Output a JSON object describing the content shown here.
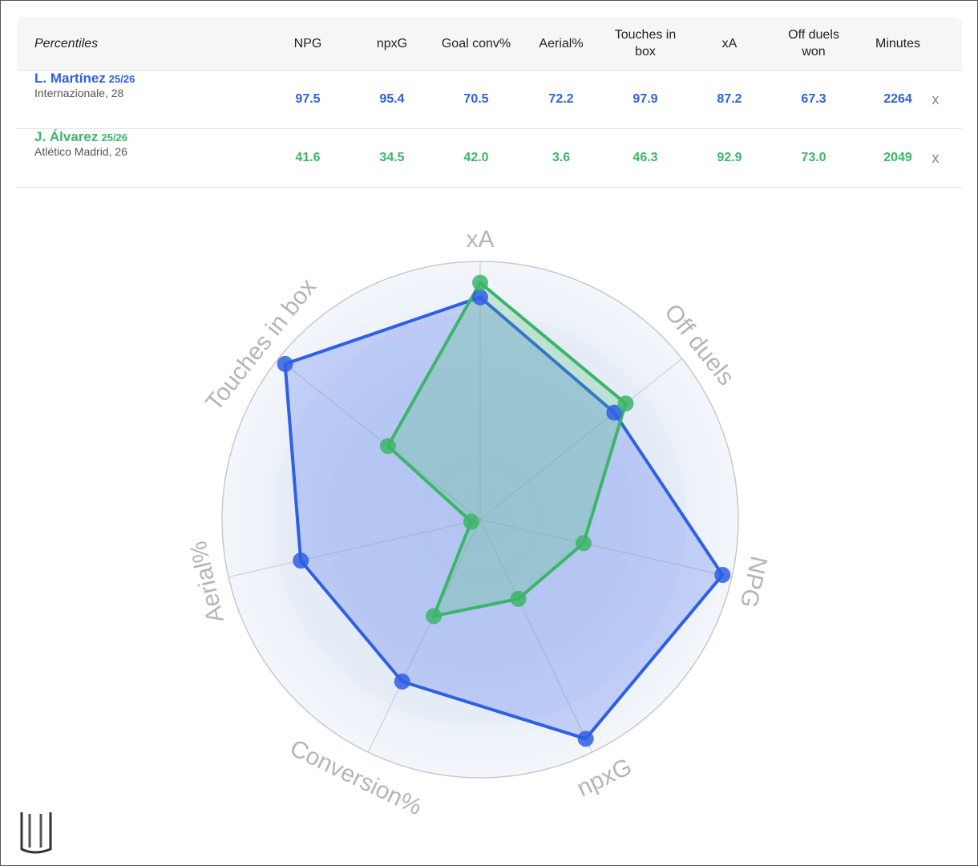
{
  "table": {
    "header": [
      "Percentiles",
      "NPG",
      "npxG",
      "Goal conv%",
      "Aerial%",
      "Touches in box",
      "xA",
      "Off duels won",
      "Minutes"
    ],
    "rows": [
      {
        "name": "L. Martínez",
        "season": "25/26",
        "info": "Internazionale, 28",
        "cells": [
          "97.5",
          "95.4",
          "70.5",
          "72.2",
          "97.9",
          "87.2",
          "67.3",
          "2264"
        ],
        "remove": "x"
      },
      {
        "name": "J. Álvarez",
        "season": "25/26",
        "info": "Atlético Madrid, 26",
        "cells": [
          "41.6",
          "34.5",
          "42.0",
          "3.6",
          "46.3",
          "92.9",
          "73.0",
          "2049"
        ],
        "remove": "x"
      }
    ]
  },
  "chart_data": {
    "type": "radar",
    "categories": [
      "xA",
      "Off duels",
      "NPG",
      "npxG",
      "Conversion%",
      "Aerial%",
      "Touches in box"
    ],
    "rlim": [
      0,
      100
    ],
    "series": [
      {
        "color": "#2f5fe3",
        "values": [
          87.2,
          67.3,
          97.5,
          95.4,
          70.5,
          72.2,
          97.9
        ]
      },
      {
        "color": "#3cb56a",
        "values": [
          92.9,
          73.0,
          41.6,
          34.5,
          42.0,
          3.6,
          46.3
        ]
      }
    ]
  }
}
